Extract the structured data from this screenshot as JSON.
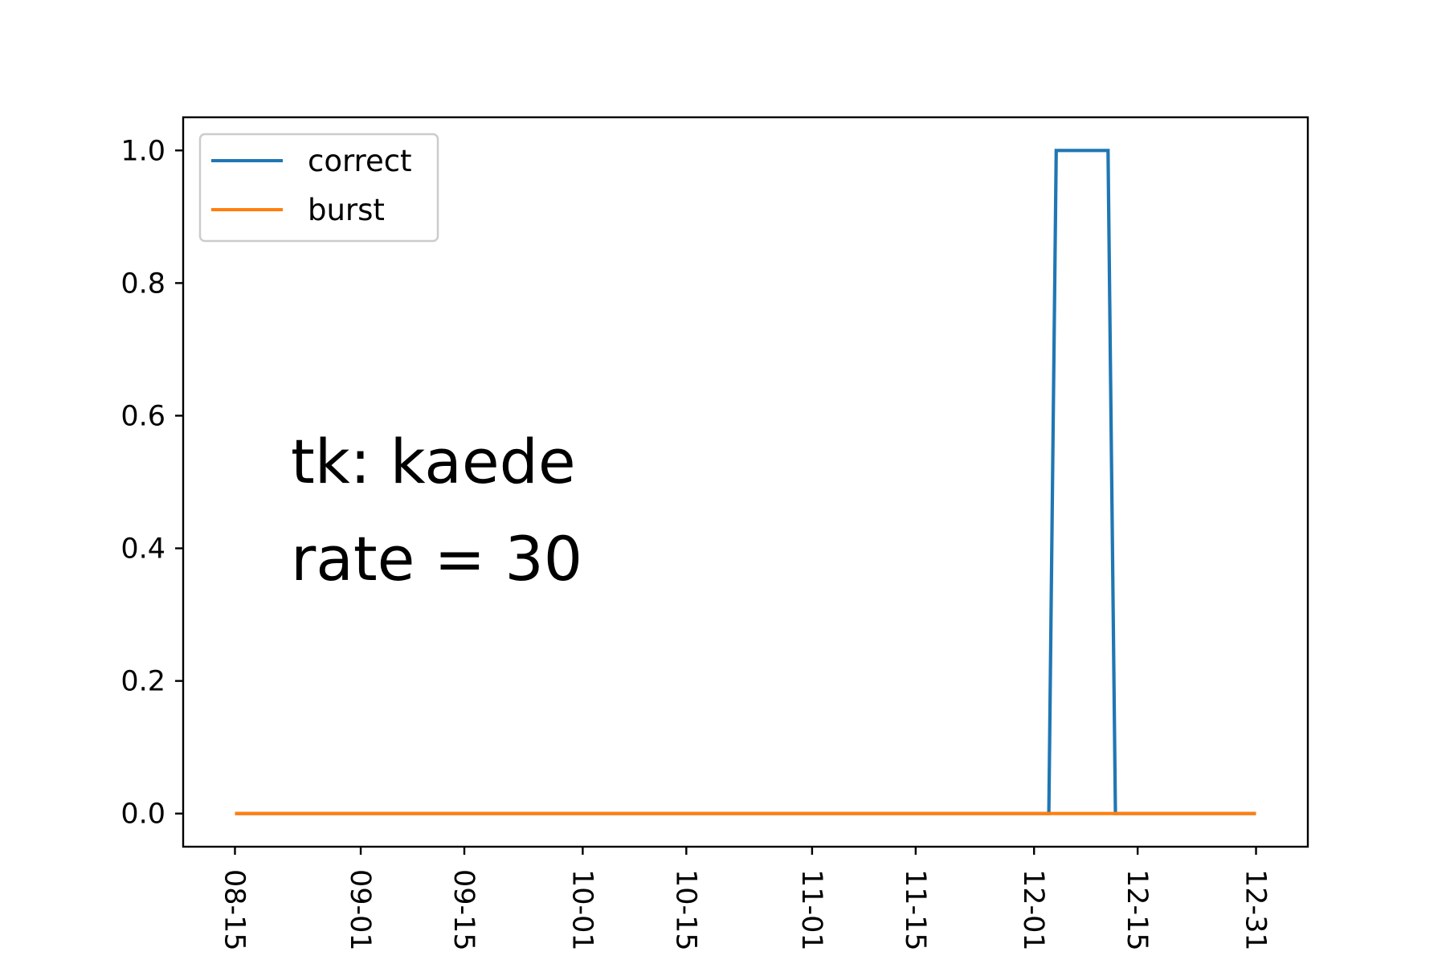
{
  "chart_data": {
    "type": "line",
    "x_dates": [
      "2019-08-15",
      "2019-12-03",
      "2019-12-04",
      "2019-12-11",
      "2019-12-12",
      "2019-12-31"
    ],
    "x_ticks": [
      "08-15",
      "09-01",
      "09-15",
      "10-01",
      "10-15",
      "11-01",
      "11-15",
      "12-01",
      "12-15",
      "12-31"
    ],
    "x_tick_dates": [
      "2019-08-15",
      "2019-09-01",
      "2019-09-15",
      "2019-10-01",
      "2019-10-15",
      "2019-11-01",
      "2019-11-15",
      "2019-12-01",
      "2019-12-15",
      "2019-12-31"
    ],
    "series": [
      {
        "name": "correct",
        "color": "#1f77b4",
        "x": [
          "2019-08-15",
          "2019-12-03",
          "2019-12-04",
          "2019-12-11",
          "2019-12-12",
          "2019-12-31"
        ],
        "values": [
          0,
          0,
          1,
          1,
          0,
          0
        ]
      },
      {
        "name": "burst",
        "color": "#ff7f0e",
        "x": [
          "2019-08-15",
          "2019-12-31"
        ],
        "values": [
          0,
          0
        ]
      }
    ],
    "ylim": [
      -0.05,
      1.05
    ],
    "xlim": [
      "2019-08-08",
      "2020-01-07"
    ],
    "y_ticks": [
      "0.0",
      "0.2",
      "0.4",
      "0.6",
      "0.8",
      "1.0"
    ],
    "y_tick_values": [
      0,
      0.2,
      0.4,
      0.6,
      0.8,
      1.0
    ],
    "legend": {
      "placement": "upper left",
      "entries": [
        "correct",
        "burst"
      ]
    },
    "annotations": [
      "tk: kaede",
      "rate = 30"
    ],
    "title": "",
    "xlabel": "",
    "ylabel": "",
    "grid": false
  }
}
